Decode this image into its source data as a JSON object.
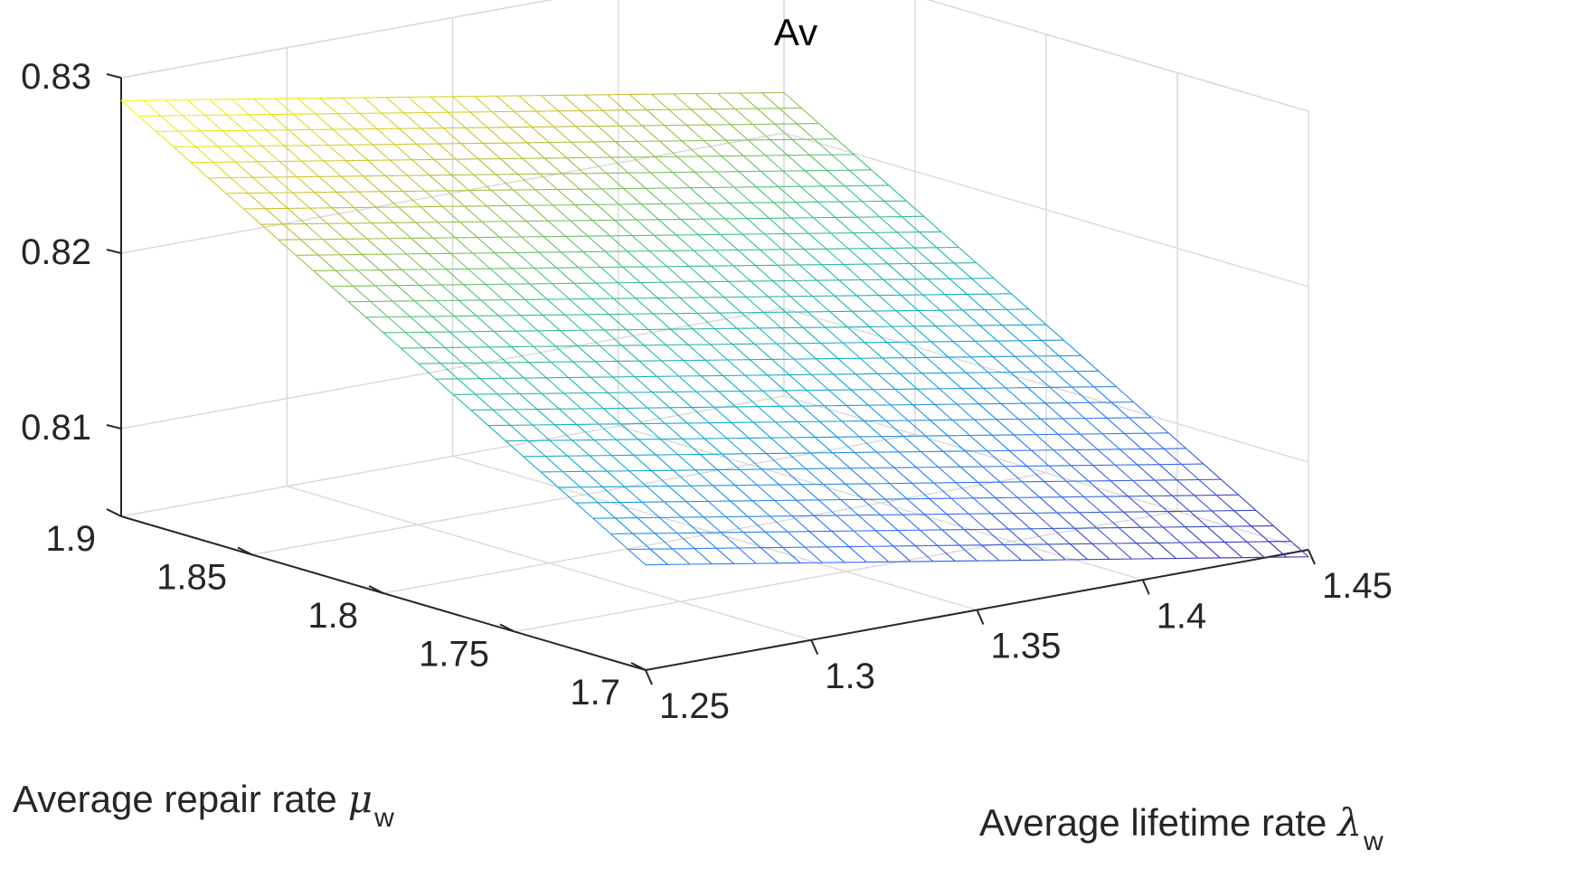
{
  "chart_data": {
    "type": "surface",
    "title": "Av",
    "xlabel": "Average lifetime rate",
    "xlabel_symbol": "λ",
    "xlabel_subscript": "w",
    "ylabel": "Average repair rate",
    "ylabel_symbol": "μ",
    "ylabel_subscript": "w",
    "zlabel": "",
    "xlim": [
      1.25,
      1.45
    ],
    "ylim": [
      1.7,
      1.9
    ],
    "zlim": [
      0.805,
      0.83
    ],
    "xticks": [
      1.25,
      1.3,
      1.35,
      1.4,
      1.45
    ],
    "xtick_labels": [
      "1.25",
      "1.3",
      "1.35",
      "1.4",
      "1.45"
    ],
    "yticks": [
      1.7,
      1.75,
      1.8,
      1.85,
      1.9
    ],
    "ytick_labels": [
      "1.7",
      "1.75",
      "1.8",
      "1.85",
      "1.9"
    ],
    "zticks": [
      0.81,
      0.82,
      0.83
    ],
    "ztick_labels": [
      "0.81",
      "0.82",
      "0.83"
    ],
    "grid": true,
    "colormap": "parula",
    "mesh_count": 30,
    "surface_corners": [
      {
        "lambda": 1.25,
        "mu": 1.9,
        "av": 0.8287
      },
      {
        "lambda": 1.45,
        "mu": 1.9,
        "av": 0.8223
      },
      {
        "lambda": 1.25,
        "mu": 1.7,
        "av": 0.811
      },
      {
        "lambda": 1.45,
        "mu": 1.7,
        "av": 0.8046
      }
    ]
  }
}
